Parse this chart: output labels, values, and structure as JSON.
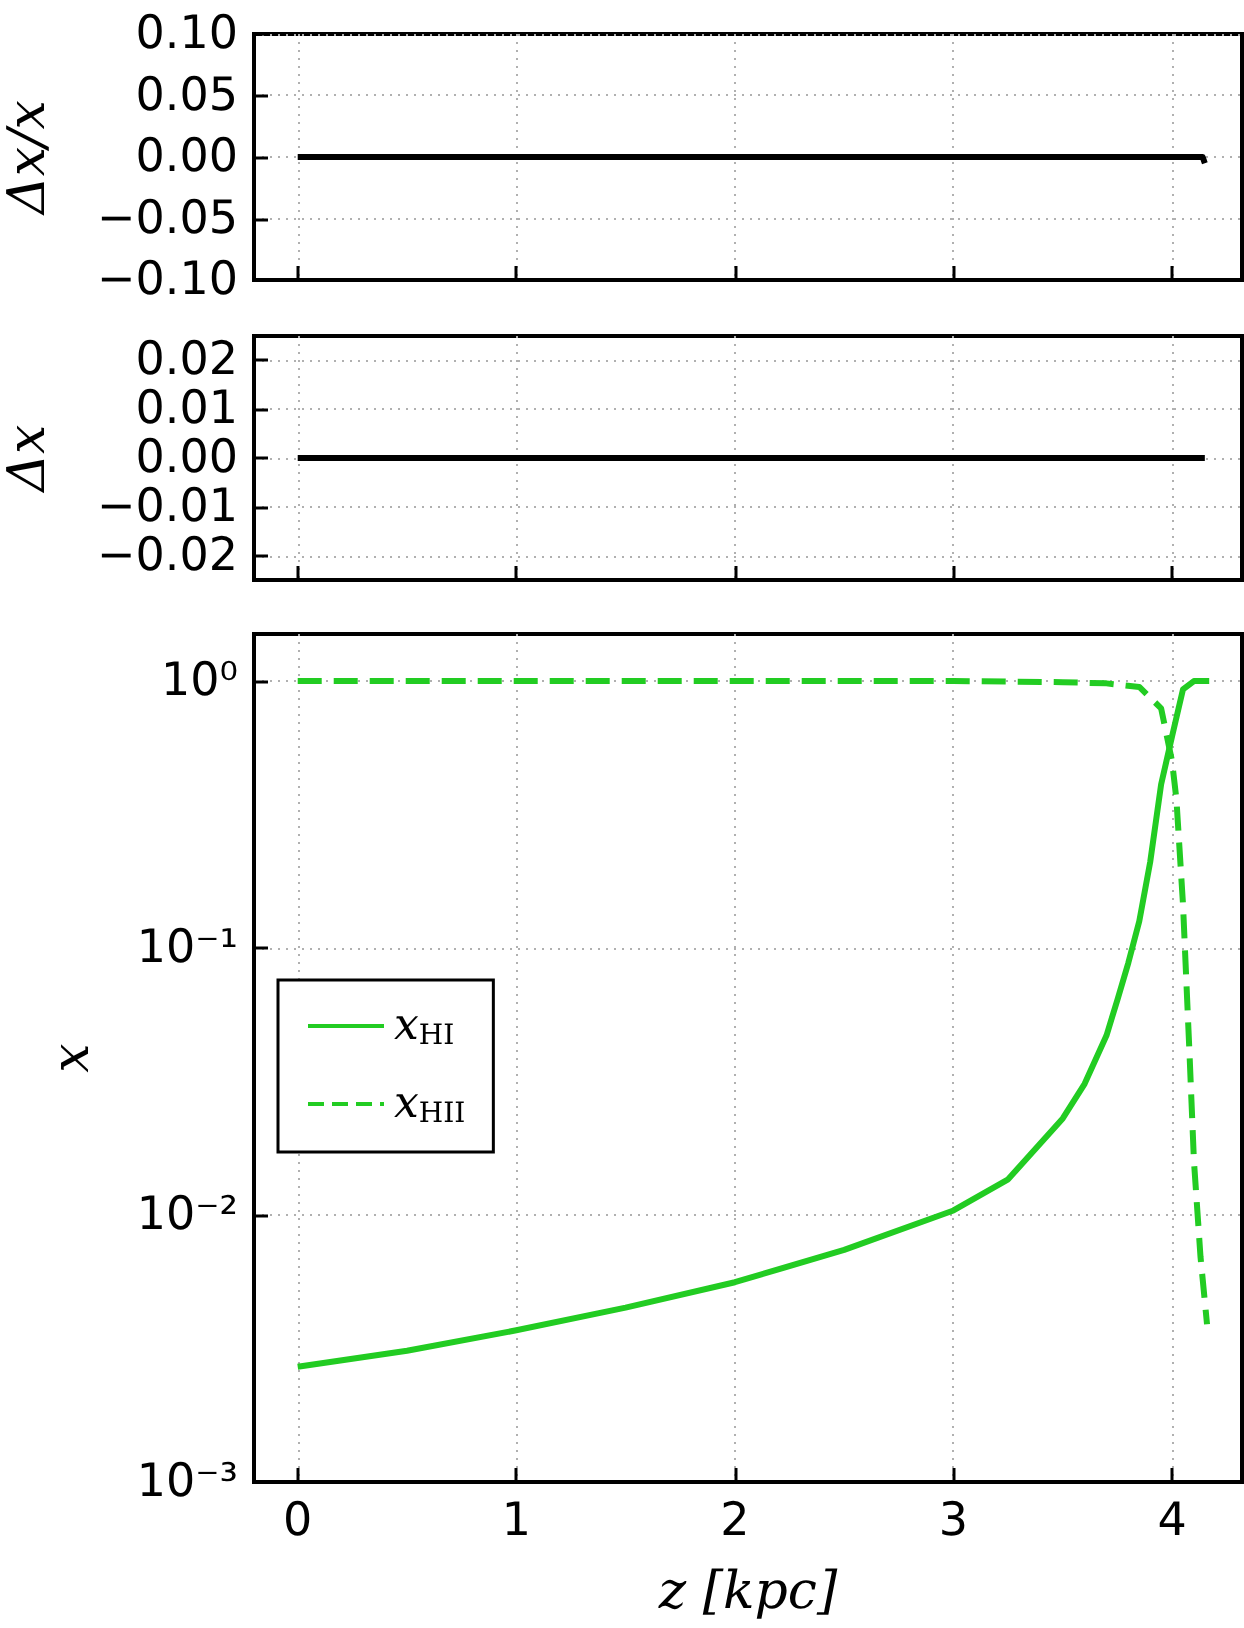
{
  "chart_data": [
    {
      "type": "line",
      "ylabel": "Δx/x",
      "xlim": [
        -0.2,
        4.32
      ],
      "xticks": [
        0,
        1,
        2,
        3,
        4
      ],
      "ylim": [
        -0.1,
        0.1
      ],
      "yticks": [
        {
          "value": 0.1,
          "label": "0.10"
        },
        {
          "value": 0.05,
          "label": "0.05"
        },
        {
          "value": 0,
          "label": "0.00"
        },
        {
          "value": -0.05,
          "label": "−0.05"
        },
        {
          "value": -0.1,
          "label": "−0.10"
        }
      ],
      "tick_labels": "y",
      "grid": true,
      "series": [
        {
          "color": "#000000",
          "line_style": "solid",
          "x": [
            0,
            1,
            2,
            3,
            4,
            4.14,
            4.15
          ],
          "values": [
            0,
            0,
            0,
            0,
            0,
            0,
            -0.005
          ]
        }
      ]
    },
    {
      "type": "line",
      "ylabel": "Δx",
      "xlim": [
        -0.2,
        4.32
      ],
      "xticks": [
        0,
        1,
        2,
        3,
        4
      ],
      "ylim": [
        -0.025,
        0.025
      ],
      "yticks": [
        {
          "value": 0.02,
          "label": "0.02"
        },
        {
          "value": 0.01,
          "label": "0.01"
        },
        {
          "value": 0,
          "label": "0.00"
        },
        {
          "value": -0.01,
          "label": "−0.01"
        },
        {
          "value": -0.02,
          "label": "−0.02"
        }
      ],
      "tick_labels": "y",
      "grid": true,
      "series": [
        {
          "color": "#000000",
          "line_style": "solid",
          "x": [
            0,
            1,
            2,
            3,
            4,
            4.15
          ],
          "values": [
            0,
            0,
            0,
            0,
            0,
            0
          ]
        }
      ]
    },
    {
      "type": "line",
      "xlabel": "z [kpc]",
      "ylabel": "x",
      "xlim": [
        -0.2,
        4.32
      ],
      "xticks": [
        0,
        1,
        2,
        3,
        4
      ],
      "ylim": [
        0.001,
        1.5
      ],
      "yticks": [
        {
          "value": 1,
          "label": "10⁰"
        },
        {
          "value": 0.1,
          "label": "10⁻¹"
        },
        {
          "value": 0.01,
          "label": "10⁻²"
        },
        {
          "value": 0.001,
          "label": "10⁻³"
        }
      ],
      "log": "y",
      "grid": true,
      "legend": "left",
      "series": [
        {
          "name": "x$_{HI}$",
          "color": "#22cc22",
          "line_style": "solid",
          "x": [
            0,
            0.5,
            1,
            1.5,
            2,
            2.5,
            3,
            3.25,
            3.5,
            3.6,
            3.7,
            3.75,
            3.8,
            3.85,
            3.9,
            3.95,
            4.0,
            4.05,
            4.1,
            4.17
          ],
          "values": [
            0.0027,
            0.0031,
            0.0037,
            0.0045,
            0.0056,
            0.0074,
            0.0104,
            0.0136,
            0.023,
            0.031,
            0.047,
            0.064,
            0.088,
            0.126,
            0.21,
            0.41,
            0.62,
            0.93,
            1.0,
            1.0
          ]
        },
        {
          "name": "x$_{HII}$",
          "color": "#22cc22",
          "line_style": "dashed",
          "x": [
            0,
            1,
            2,
            3,
            3.5,
            3.7,
            3.85,
            3.95,
            4.0,
            4.02,
            4.05,
            4.08,
            4.1,
            4.13,
            4.16
          ],
          "values": [
            1.0,
            1.0,
            1.0,
            1.0,
            0.99,
            0.98,
            0.95,
            0.79,
            0.5,
            0.36,
            0.146,
            0.04,
            0.016,
            0.007,
            0.0039
          ]
        }
      ]
    }
  ]
}
